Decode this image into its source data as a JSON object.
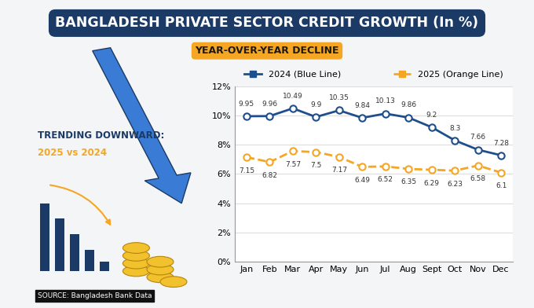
{
  "chart_data": {
    "type": "line",
    "title": "BANGLADESH PRIVATE SECTOR CREDIT GROWTH (In %)",
    "subtitle": "YEAR-OVER-YEAR DECLINE",
    "annotations": [
      "TRENDING DOWNWARD:",
      "2025 vs 2024",
      "SOURCE: Bangladesh Bank Data"
    ],
    "categories": [
      "Jan",
      "Feb",
      "Mar",
      "Apr",
      "May",
      "Jun",
      "Jul",
      "Aug",
      "Sept",
      "Oct",
      "Nov",
      "Dec"
    ],
    "series": [
      {
        "name": "2024 (Blue Line)",
        "color": "#1f4e8c",
        "marker": "o",
        "line_style": "solid",
        "values": [
          9.95,
          9.96,
          10.49,
          9.9,
          10.35,
          9.84,
          10.13,
          9.86,
          9.2,
          8.3,
          7.66,
          7.28
        ]
      },
      {
        "name": "2025 (Orange Line)",
        "color": "#f5a623",
        "marker": "o",
        "line_style": "dashed",
        "values": [
          7.15,
          6.82,
          7.57,
          7.5,
          7.17,
          6.49,
          6.52,
          6.35,
          6.29,
          6.23,
          6.58,
          6.1
        ]
      }
    ],
    "ylim": [
      0,
      12
    ],
    "yticks": [
      {
        "value": 0,
        "label": "0%"
      },
      {
        "value": 2,
        "label": "2%"
      },
      {
        "value": 4,
        "label": "4%"
      },
      {
        "value": 6,
        "label": "6%"
      },
      {
        "value": 8,
        "label": "8%"
      },
      {
        "value": 10,
        "label": "10%"
      },
      {
        "value": 12,
        "label": "12%"
      }
    ],
    "grid": true,
    "legend": "lower center",
    "data_labels": true
  }
}
